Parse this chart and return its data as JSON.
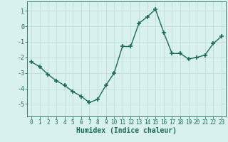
{
  "x": [
    0,
    1,
    2,
    3,
    4,
    5,
    6,
    7,
    8,
    9,
    10,
    11,
    12,
    13,
    14,
    15,
    16,
    17,
    18,
    19,
    20,
    21,
    22,
    23
  ],
  "y": [
    -2.3,
    -2.6,
    -3.1,
    -3.5,
    -3.8,
    -4.2,
    -4.5,
    -4.9,
    -4.7,
    -3.8,
    -3.0,
    -1.3,
    -1.3,
    0.2,
    0.6,
    1.1,
    -0.4,
    -1.75,
    -1.75,
    -2.1,
    -2.0,
    -1.85,
    -1.1,
    -0.65
  ],
  "line_color": "#1a6b5a",
  "marker": "+",
  "markersize": 4,
  "markeredgewidth": 1.2,
  "linewidth": 1.0,
  "xlabel": "Humidex (Indice chaleur)",
  "xlabel_fontsize": 7,
  "xlabel_fontweight": "bold",
  "xlim": [
    -0.5,
    23.5
  ],
  "ylim": [
    -5.8,
    1.6
  ],
  "yticks": [
    -5,
    -4,
    -3,
    -2,
    -1,
    0,
    1
  ],
  "xticks": [
    0,
    1,
    2,
    3,
    4,
    5,
    6,
    7,
    8,
    9,
    10,
    11,
    12,
    13,
    14,
    15,
    16,
    17,
    18,
    19,
    20,
    21,
    22,
    23
  ],
  "xtick_labels": [
    "0",
    "1",
    "2",
    "3",
    "4",
    "5",
    "6",
    "7",
    "8",
    "9",
    "10",
    "11",
    "12",
    "13",
    "14",
    "15",
    "16",
    "17",
    "18",
    "19",
    "20",
    "21",
    "22",
    "23"
  ],
  "bg_color": "#d8f0ee",
  "grid_color": "#c0dbd8",
  "tick_fontsize": 5.5,
  "ytick_fontsize": 6
}
